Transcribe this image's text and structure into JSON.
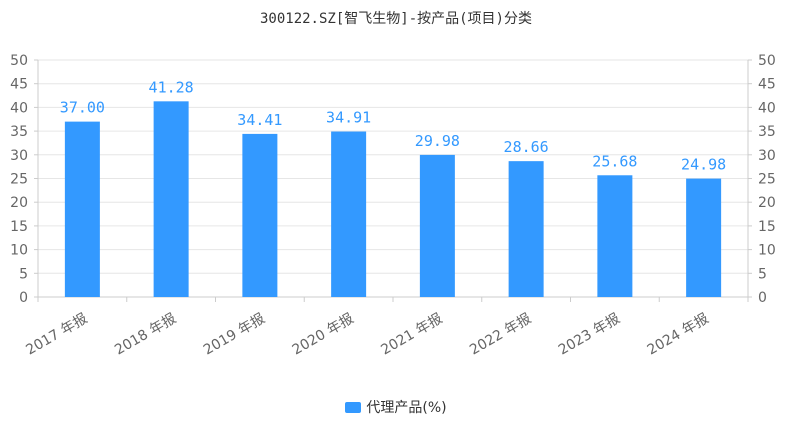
{
  "chart_data": {
    "type": "bar",
    "title": "300122.SZ[智飞生物]-按产品(项目)分类",
    "categories": [
      "2017 年报",
      "2018 年报",
      "2019 年报",
      "2020 年报",
      "2021 年报",
      "2022 年报",
      "2023 年报",
      "2024 年报"
    ],
    "series": [
      {
        "name": "代理产品(%)",
        "values": [
          37.0,
          41.28,
          34.41,
          34.91,
          29.98,
          28.66,
          25.68,
          24.98
        ]
      }
    ],
    "data_labels": [
      "37.00",
      "41.28",
      "34.41",
      "34.91",
      "29.98",
      "28.66",
      "25.68",
      "24.98"
    ],
    "ylim": [
      0,
      50
    ],
    "y_ticks": [
      0,
      5,
      10,
      15,
      20,
      25,
      30,
      35,
      40,
      45,
      50
    ],
    "y_axis_mirrored_right": true,
    "grid": true,
    "legend_position": "bottom-center",
    "colors": {
      "bar": "#3399ff",
      "label": "#3399ff",
      "grid": "#e6e6e6",
      "axis": "#cccccc",
      "text": "#666666"
    }
  }
}
